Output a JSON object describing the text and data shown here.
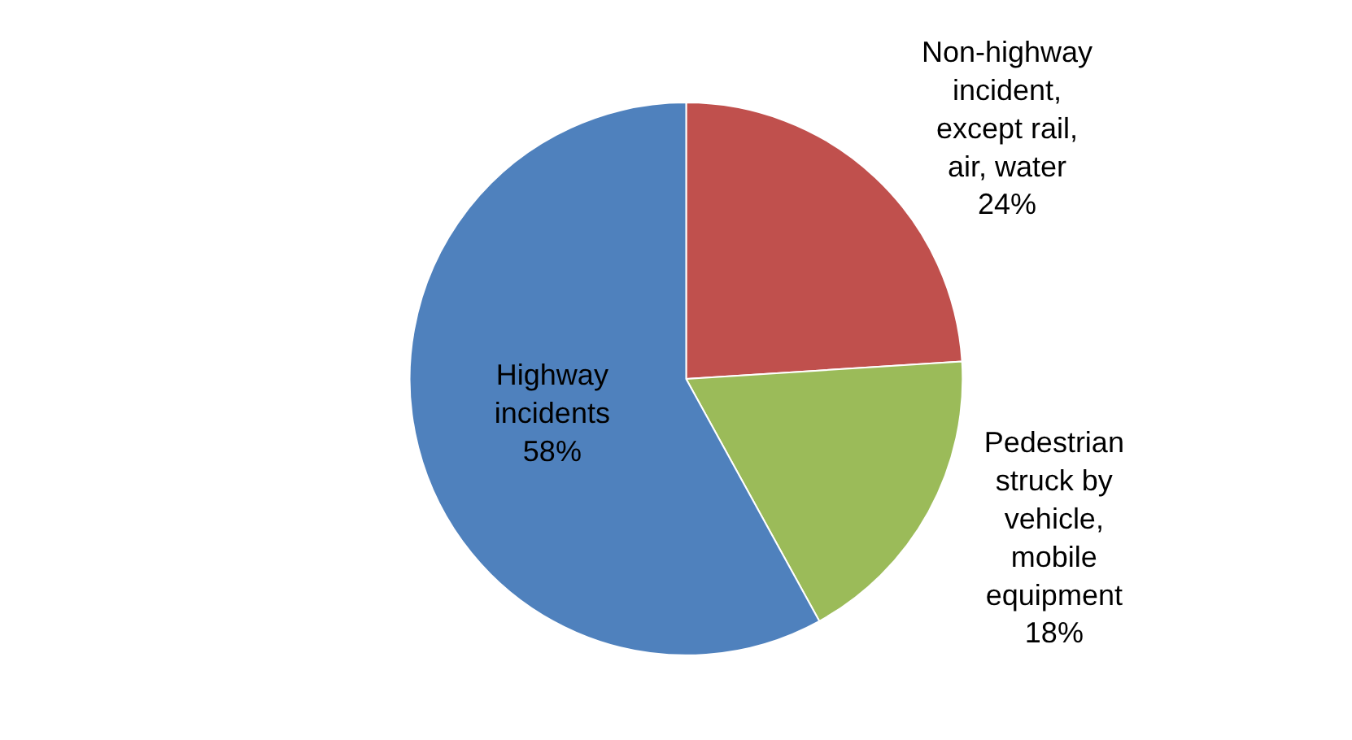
{
  "chart_data": {
    "type": "pie",
    "categories": [
      "Non-highway incident, except rail, air, water",
      "Pedestrian struck by vehicle, mobile equipment",
      "Highway incidents"
    ],
    "values": [
      24,
      18,
      58
    ],
    "colors": [
      "#c0504d",
      "#9bbb59",
      "#4f81bd"
    ],
    "value_labels": [
      "24%",
      "18%",
      "58%"
    ],
    "legend": false
  }
}
